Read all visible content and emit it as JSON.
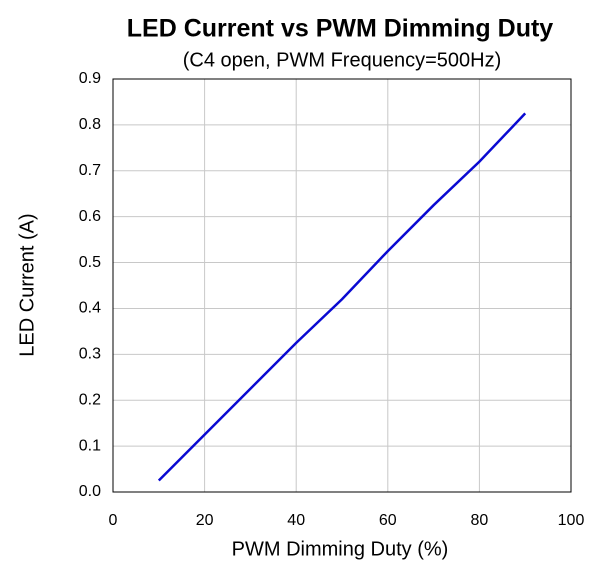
{
  "chart_data": {
    "type": "line",
    "title": "LED Current vs PWM Dimming Duty",
    "subtitle": "(C4 open, PWM Frequency=500Hz)",
    "x_label": "PWM Dimming Duty (%)",
    "y_label": "LED Current (A)",
    "x": [
      10,
      20,
      30,
      40,
      50,
      60,
      70,
      80,
      90
    ],
    "values": [
      0.025,
      0.125,
      0.225,
      0.325,
      0.42,
      0.525,
      0.625,
      0.72,
      0.825
    ],
    "color": "#0a0ad2",
    "xlim": [
      0,
      100
    ],
    "xticks": [
      0,
      20,
      40,
      60,
      80,
      100
    ],
    "ylim": [
      0,
      0.9
    ],
    "yticks": [
      {
        "value": 0,
        "label": "0.0"
      },
      0.1,
      0.2,
      0.3,
      0.4,
      0.5,
      0.6,
      0.7,
      0.8,
      0.9
    ],
    "grid": true
  }
}
